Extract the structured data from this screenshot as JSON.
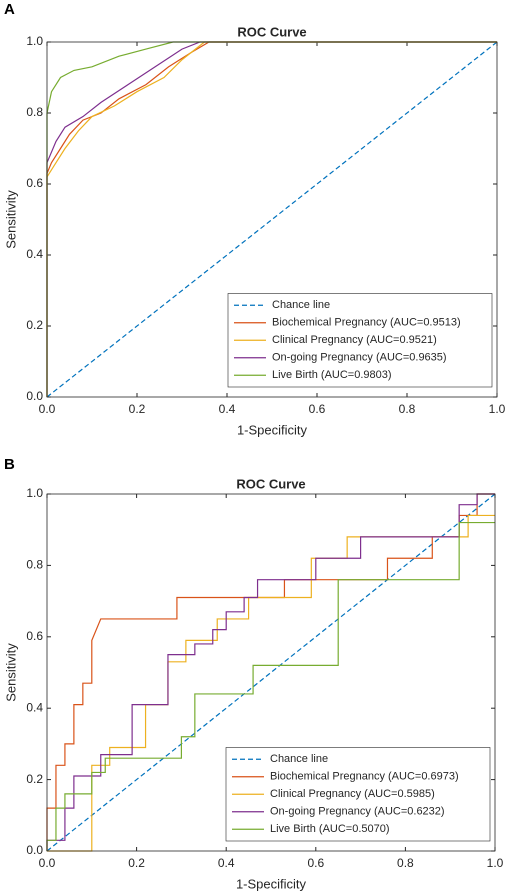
{
  "chart_data": [
    {
      "type": "line",
      "panel_label": "A",
      "title": "ROC Curve",
      "x_label": "1-Specificity",
      "y_label": "Sensitivity",
      "xlim": [
        0,
        1
      ],
      "ylim": [
        0,
        1
      ],
      "xticks": [
        {
          "value": 0,
          "label": "0.0"
        },
        0.2,
        0.4,
        0.6,
        0.8,
        {
          "value": 1,
          "label": "1.0"
        }
      ],
      "yticks": [
        {
          "value": 0,
          "label": "0.0"
        },
        0.2,
        0.4,
        0.6,
        0.8,
        {
          "value": 1,
          "label": "1.0"
        }
      ],
      "grid": false,
      "legend": "lower right",
      "series": [
        {
          "name": "Chance line",
          "color": "#0072bd",
          "dashed": true,
          "x": [
            0,
            1
          ],
          "values": [
            0,
            1
          ]
        },
        {
          "name": "Biochemical Pregnancy (AUC=0.9513)",
          "color": "#d95319",
          "x": [
            0,
            0,
            0.01,
            0.03,
            0.05,
            0.08,
            0.12,
            0.16,
            0.22,
            0.27,
            0.32,
            0.36,
            1
          ],
          "values": [
            0,
            0.63,
            0.66,
            0.7,
            0.74,
            0.78,
            0.8,
            0.84,
            0.88,
            0.93,
            0.97,
            1,
            1
          ]
        },
        {
          "name": "Clinical Pregnancy (AUC=0.9521)",
          "color": "#edb120",
          "x": [
            0,
            0,
            0.02,
            0.04,
            0.07,
            0.1,
            0.15,
            0.2,
            0.26,
            0.3,
            0.35,
            1
          ],
          "values": [
            0,
            0.62,
            0.66,
            0.7,
            0.75,
            0.79,
            0.82,
            0.86,
            0.9,
            0.95,
            1,
            1
          ]
        },
        {
          "name": "On-going Pregnancy (AUC=0.9635)",
          "color": "#7e2f8e",
          "x": [
            0,
            0,
            0.02,
            0.04,
            0.08,
            0.12,
            0.18,
            0.24,
            0.3,
            0.34,
            1
          ],
          "values": [
            0,
            0.66,
            0.72,
            0.76,
            0.79,
            0.83,
            0.88,
            0.93,
            0.98,
            1,
            1
          ]
        },
        {
          "name": "Live Birth (AUC=0.9803)",
          "color": "#77ac30",
          "x": [
            0,
            0,
            0.01,
            0.03,
            0.06,
            0.1,
            0.16,
            0.22,
            0.28,
            1
          ],
          "values": [
            0,
            0.8,
            0.86,
            0.9,
            0.92,
            0.93,
            0.96,
            0.98,
            1,
            1
          ]
        }
      ]
    },
    {
      "type": "line",
      "panel_label": "B",
      "title": "ROC Curve",
      "x_label": "1-Specificity",
      "y_label": "Sensitivity",
      "xlim": [
        0,
        1
      ],
      "ylim": [
        0,
        1
      ],
      "xticks": [
        {
          "value": 0,
          "label": "0.0"
        },
        0.2,
        0.4,
        0.6,
        0.8,
        {
          "value": 1,
          "label": "1.0"
        }
      ],
      "yticks": [
        {
          "value": 0,
          "label": "0.0"
        },
        0.2,
        0.4,
        0.6,
        0.8,
        {
          "value": 1,
          "label": "1.0"
        }
      ],
      "grid": false,
      "legend": "lower right",
      "series": [
        {
          "name": "Chance line",
          "color": "#0072bd",
          "dashed": true,
          "x": [
            0,
            1
          ],
          "values": [
            0,
            1
          ]
        },
        {
          "name": "Biochemical Pregnancy (AUC=0.6973)",
          "color": "#d95319",
          "x": [
            0,
            0,
            0.02,
            0.02,
            0.04,
            0.04,
            0.06,
            0.06,
            0.08,
            0.08,
            0.1,
            0.1,
            0.12,
            0.29,
            0.29,
            0.53,
            0.53,
            0.76,
            0.76,
            0.86,
            0.86,
            0.92,
            0.92,
            0.96,
            0.96,
            1
          ],
          "values": [
            0,
            0.12,
            0.12,
            0.24,
            0.24,
            0.3,
            0.3,
            0.41,
            0.41,
            0.47,
            0.47,
            0.59,
            0.65,
            0.65,
            0.71,
            0.71,
            0.76,
            0.76,
            0.82,
            0.82,
            0.88,
            0.88,
            0.94,
            0.94,
            1,
            1
          ]
        },
        {
          "name": "Clinical Pregnancy (AUC=0.5985)",
          "color": "#edb120",
          "x": [
            0,
            0.1,
            0.1,
            0.14,
            0.14,
            0.22,
            0.22,
            0.27,
            0.27,
            0.31,
            0.31,
            0.38,
            0.38,
            0.45,
            0.45,
            0.59,
            0.59,
            0.67,
            0.67,
            0.94,
            0.94,
            1
          ],
          "values": [
            0,
            0,
            0.24,
            0.24,
            0.29,
            0.29,
            0.41,
            0.41,
            0.53,
            0.53,
            0.59,
            0.59,
            0.65,
            0.65,
            0.71,
            0.71,
            0.82,
            0.82,
            0.88,
            0.88,
            0.94,
            0.94
          ]
        },
        {
          "name": "On-going Pregnancy (AUC=0.6232)",
          "color": "#7e2f8e",
          "x": [
            0,
            0,
            0.04,
            0.04,
            0.06,
            0.06,
            0.12,
            0.12,
            0.19,
            0.19,
            0.27,
            0.27,
            0.33,
            0.33,
            0.37,
            0.37,
            0.4,
            0.4,
            0.44,
            0.44,
            0.47,
            0.47,
            0.6,
            0.6,
            0.7,
            0.7,
            0.92,
            0.92,
            0.96,
            0.96,
            1
          ],
          "values": [
            0,
            0.03,
            0.03,
            0.12,
            0.12,
            0.21,
            0.21,
            0.27,
            0.27,
            0.41,
            0.41,
            0.55,
            0.55,
            0.58,
            0.58,
            0.62,
            0.62,
            0.67,
            0.67,
            0.71,
            0.71,
            0.76,
            0.76,
            0.82,
            0.82,
            0.88,
            0.88,
            0.97,
            0.97,
            1,
            1
          ]
        },
        {
          "name": "Live Birth (AUC=0.5070)",
          "color": "#77ac30",
          "x": [
            0,
            0,
            0.02,
            0.02,
            0.04,
            0.04,
            0.1,
            0.1,
            0.13,
            0.13,
            0.3,
            0.3,
            0.33,
            0.33,
            0.46,
            0.46,
            0.65,
            0.65,
            0.92,
            0.92,
            1
          ],
          "values": [
            0,
            0.03,
            0.03,
            0.12,
            0.12,
            0.16,
            0.16,
            0.22,
            0.22,
            0.26,
            0.26,
            0.32,
            0.32,
            0.44,
            0.44,
            0.52,
            0.52,
            0.76,
            0.76,
            0.92,
            0.92
          ]
        }
      ]
    }
  ]
}
